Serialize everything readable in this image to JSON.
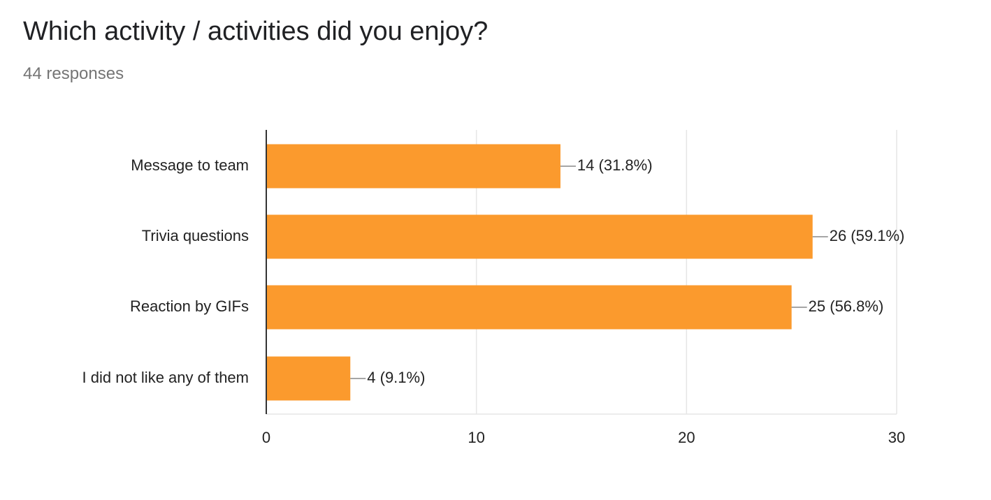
{
  "question": {
    "title": "Which activity / activities did you enjoy?",
    "responses": "44 responses"
  },
  "colors": {
    "bar": "#fb9a2d",
    "grid": "#e6e6e6",
    "axis": "#333333",
    "leader": "#888888"
  },
  "chart_data": {
    "type": "bar",
    "orientation": "horizontal",
    "title": "",
    "xlabel": "",
    "ylabel": "",
    "categories": [
      "Message to team",
      "Trivia questions",
      "Reaction by GIFs",
      "I did not like any of them"
    ],
    "values": [
      14,
      26,
      25,
      4
    ],
    "data_labels": [
      "14 (31.8%)",
      "26 (59.1%)",
      "25 (56.8%)",
      "4 (9.1%)"
    ],
    "xlim": [
      0,
      30
    ],
    "xticks": [
      0,
      10,
      20,
      30
    ],
    "grid": true,
    "legend": "none"
  }
}
